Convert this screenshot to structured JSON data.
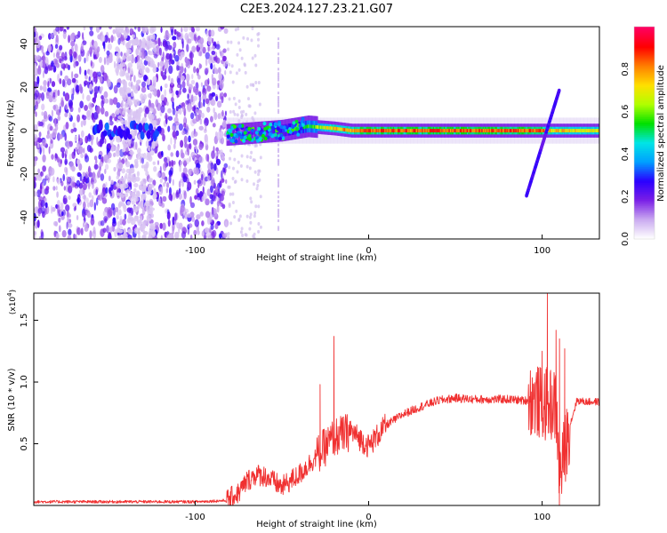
{
  "title": "C2E3.2024.127.23.21.G07",
  "chart_data": [
    {
      "type": "heatmap",
      "xlabel": "Height of straight line (km)",
      "ylabel": "Frequency (Hz)",
      "xlim": [
        -193,
        133
      ],
      "ylim": [
        -50,
        48
      ],
      "xticks": [
        -100,
        0,
        100
      ],
      "xtick_labels": [
        "-100",
        "0",
        "100"
      ],
      "yticks": [
        -40,
        -20,
        0,
        20,
        40
      ],
      "ytick_labels": [
        "-40",
        "-20",
        "0",
        "20",
        "40"
      ],
      "colorbar": {
        "label": "Normalized spectral amplitude",
        "range": [
          0,
          1
        ],
        "ticks": [
          0,
          0.2,
          0.4,
          0.6,
          0.8
        ],
        "tick_labels": [
          "0.0",
          "0.2",
          "0.4",
          "0.6",
          "0.8"
        ],
        "colors": [
          "#ffffff",
          "#c9a8f0",
          "#7a1fe6",
          "#2a00ff",
          "#00a0ff",
          "#00e5e5",
          "#00e000",
          "#b0ff00",
          "#ffe000",
          "#ff8000",
          "#ff0000",
          "#ff0060"
        ]
      },
      "features": {
        "noise_region_x": [
          -193,
          -82
        ],
        "signal_band": {
          "x": [
            -82,
            -50,
            -35,
            -20,
            -10,
            0,
            50,
            100,
            105,
            133
          ],
          "freq": [
            -2,
            0,
            2,
            1,
            0,
            0,
            0,
            0,
            0,
            0
          ],
          "amplitude": [
            0.2,
            0.3,
            0.55,
            0.75,
            0.8,
            0.85,
            0.85,
            0.85,
            0.75,
            0.7
          ]
        },
        "diagonal_streak": {
          "x": [
            91,
            110
          ],
          "freq": [
            -30,
            19
          ]
        },
        "vertical_spike": {
          "x": -52,
          "freq": [
            -50,
            43
          ]
        }
      },
      "grid": false
    },
    {
      "type": "line",
      "xlabel": "Height of straight line (km)",
      "ylabel": "SNR (10 * v/v)",
      "y_multiplier": "(x10",
      "y_multiplier_exp": "4",
      "y_multiplier_close": ")",
      "xlim": [
        -193,
        133
      ],
      "ylim": [
        0,
        1.72
      ],
      "xticks": [
        -100,
        0,
        100
      ],
      "xtick_labels": [
        "-100",
        "0",
        "100"
      ],
      "yticks": [
        0.5,
        1.0,
        1.5
      ],
      "ytick_labels": [
        "0.5",
        "1.0",
        "1.5"
      ],
      "series": [
        {
          "color": "#f03030",
          "x": [
            -193,
            -150,
            -100,
            -82,
            -75,
            -70,
            -65,
            -60,
            -50,
            -40,
            -30,
            -20,
            -10,
            0,
            10,
            20,
            30,
            40,
            50,
            60,
            70,
            80,
            90,
            95,
            100,
            105,
            108,
            110,
            115,
            120,
            125,
            133
          ],
          "values": [
            0.03,
            0.03,
            0.03,
            0.04,
            0.1,
            0.2,
            0.25,
            0.24,
            0.15,
            0.25,
            0.4,
            0.55,
            0.6,
            0.48,
            0.65,
            0.74,
            0.8,
            0.85,
            0.87,
            0.86,
            0.86,
            0.86,
            0.85,
            0.86,
            0.82,
            0.82,
            0.8,
            0.2,
            0.6,
            0.85,
            0.84,
            0.84
          ]
        }
      ],
      "spikes": [
        {
          "x": -20,
          "value": 1.37
        },
        {
          "x": -28,
          "value": 0.98
        },
        {
          "x": 95,
          "value": 0.98
        },
        {
          "x": 100,
          "value": 1.25
        },
        {
          "x": 103,
          "value": 1.72
        },
        {
          "x": 108,
          "value": 1.42
        },
        {
          "x": 110,
          "value": 1.35
        },
        {
          "x": 113,
          "value": 1.27
        }
      ],
      "grid": false
    }
  ]
}
